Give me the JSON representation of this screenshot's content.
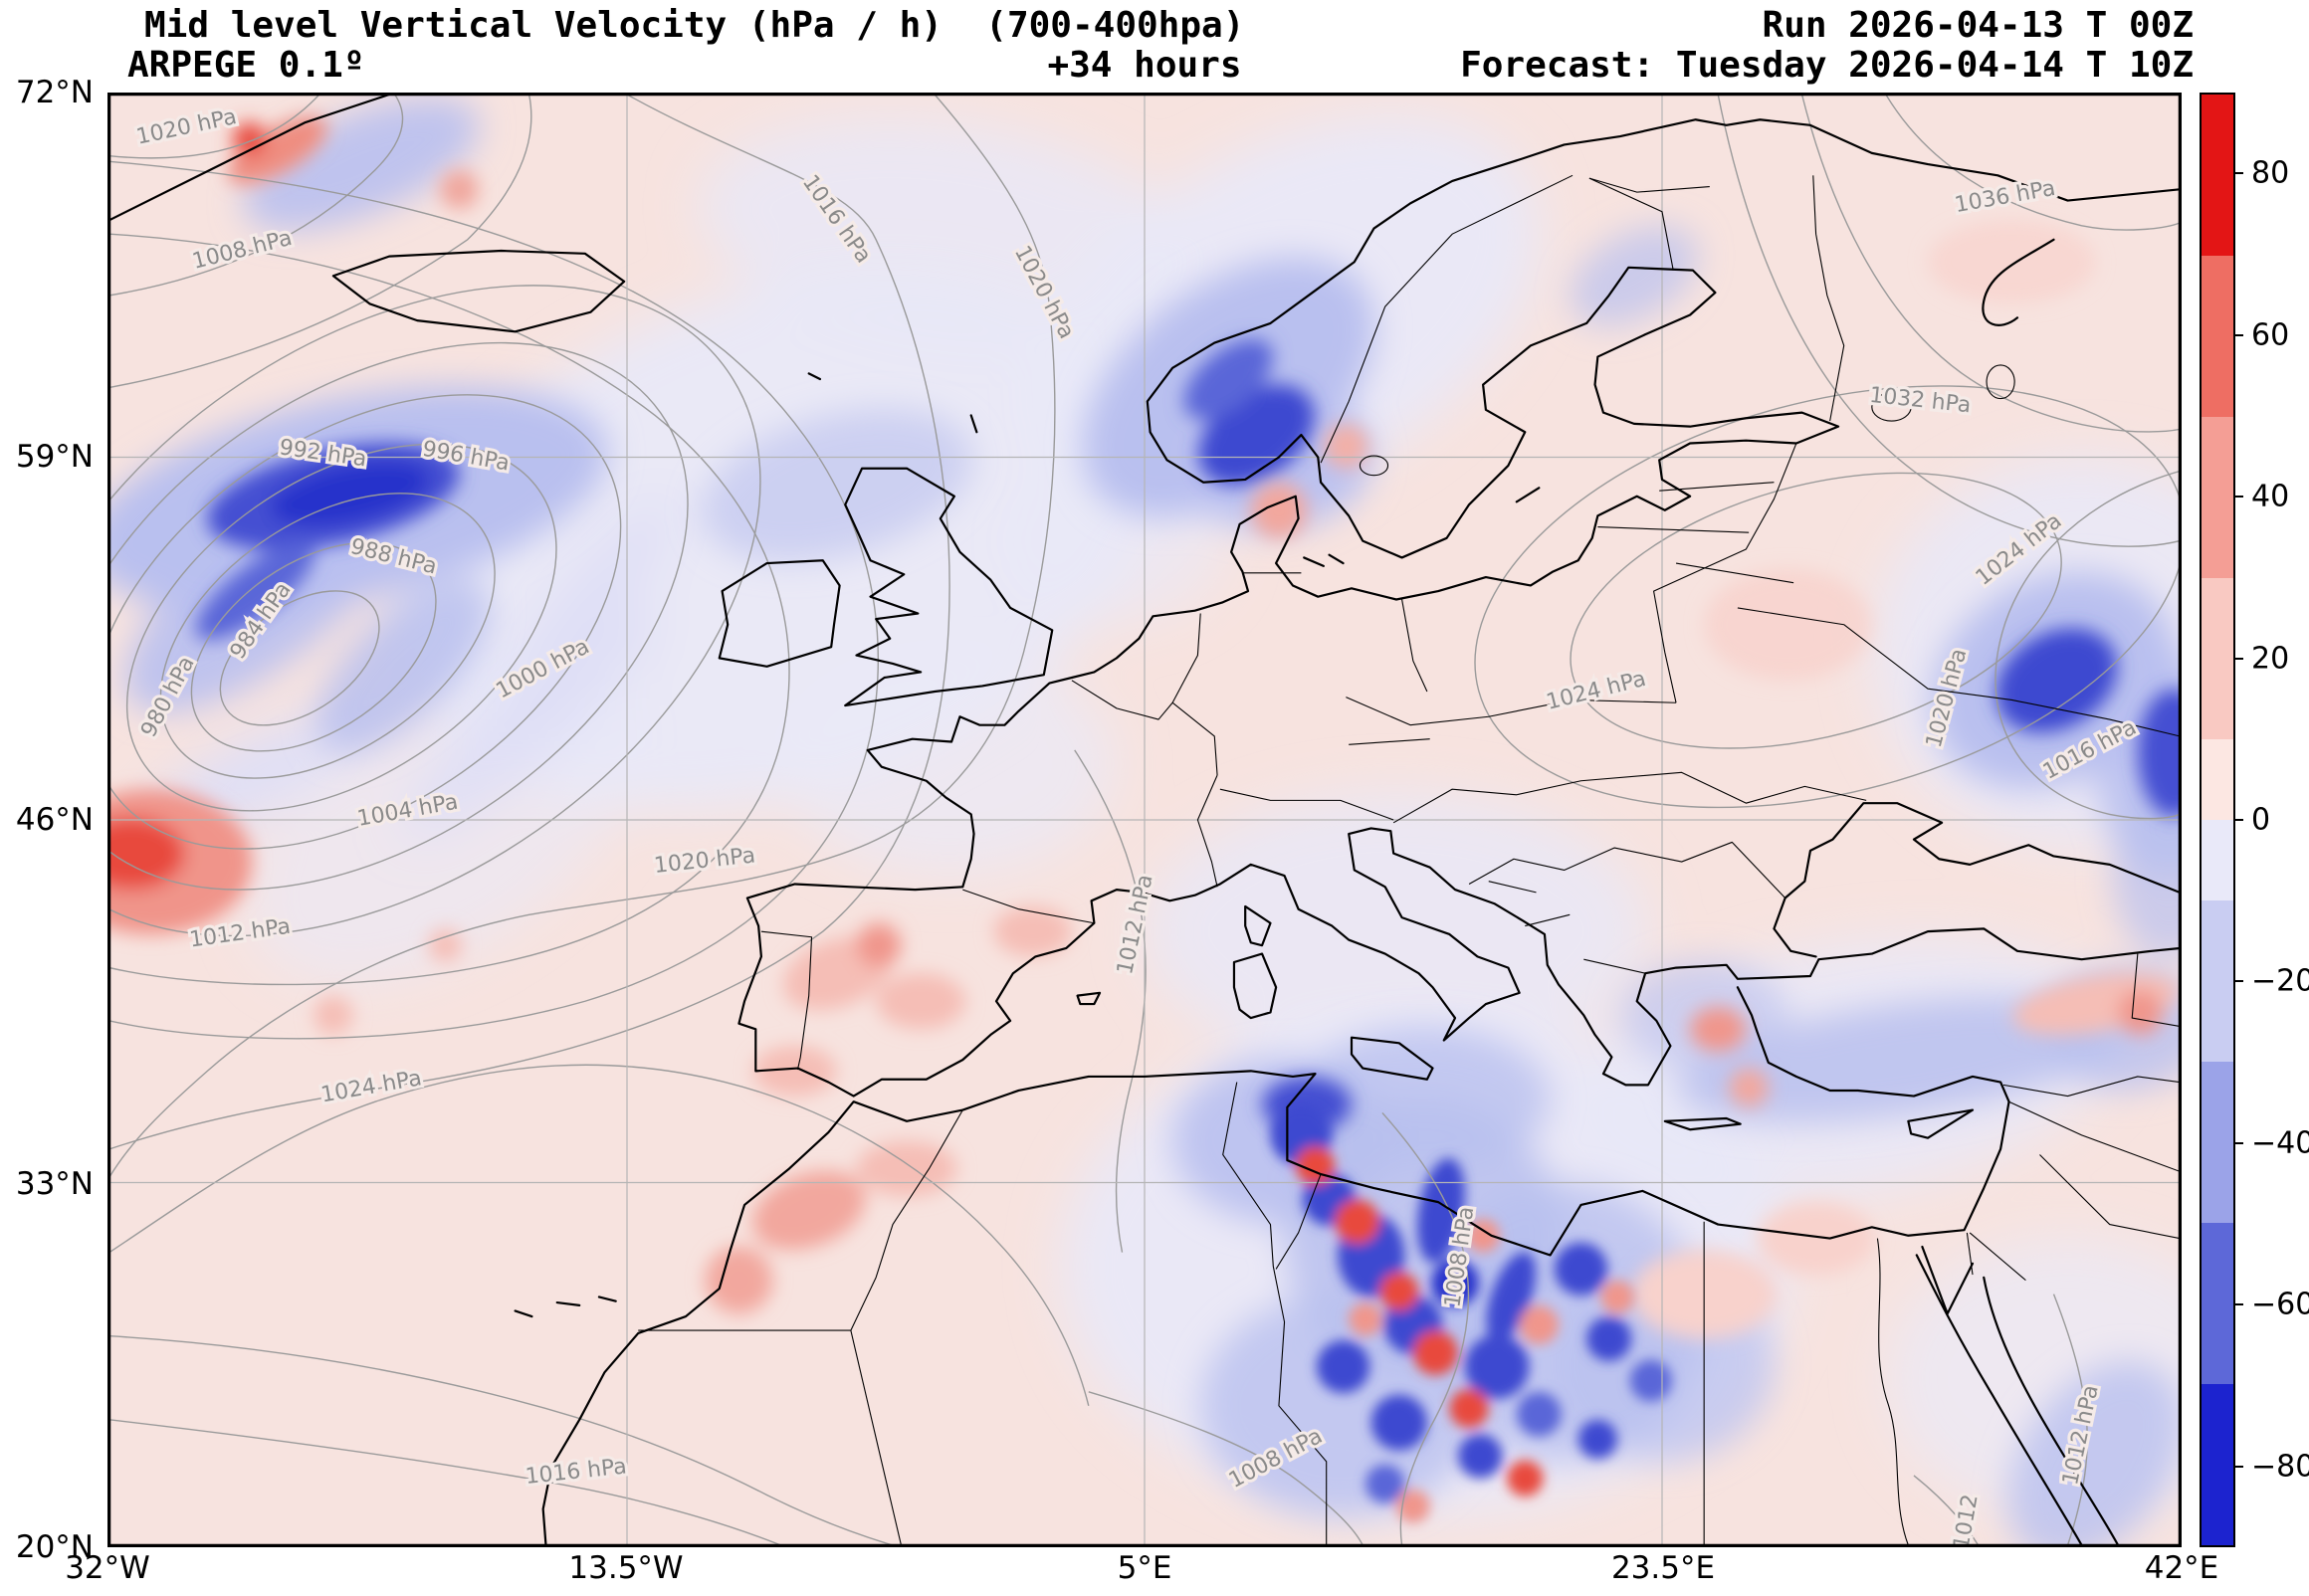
{
  "header": {
    "title": "Mid level Vertical Velocity (hPa / h)  (700-400hpa)",
    "model": "ARPEGE 0.1º",
    "lead_time": "+34 hours",
    "run": "Run 2026-04-13 T 00Z",
    "forecast": "Forecast: Tuesday 2026-04-14 T 10Z"
  },
  "map": {
    "extent": {
      "lon_min": -32,
      "lon_max": 42,
      "lat_min": 20,
      "lat_max": 72
    },
    "x_ticks": [
      {
        "label": "32°W",
        "lon": -32
      },
      {
        "label": "13.5°W",
        "lon": -13.5
      },
      {
        "label": "5°E",
        "lon": 5
      },
      {
        "label": "23.5°E",
        "lon": 23.5
      },
      {
        "label": "42°E",
        "lon": 42
      }
    ],
    "y_ticks": [
      {
        "label": "72°N",
        "lat": 72
      },
      {
        "label": "59°N",
        "lat": 59
      },
      {
        "label": "46°N",
        "lat": 46
      },
      {
        "label": "33°N",
        "lat": 33
      },
      {
        "label": "20°N",
        "lat": 20
      }
    ]
  },
  "colorbar": {
    "boundaries": [
      90,
      70,
      50,
      30,
      10,
      0,
      -10,
      -30,
      -50,
      -70,
      -90
    ],
    "colors": [
      "#e31515",
      "#ee6e63",
      "#f49e95",
      "#f9c9c2",
      "#fce7e2",
      "#e9e9f9",
      "#c9cdf2",
      "#9ba3e8",
      "#5d68d8",
      "#1c23cf"
    ],
    "ticks": [
      {
        "label": "80",
        "value": 80
      },
      {
        "label": "60",
        "value": 60
      },
      {
        "label": "40",
        "value": 40
      },
      {
        "label": "20",
        "value": 20
      },
      {
        "label": "0",
        "value": 0
      },
      {
        "label": "−20",
        "value": -20
      },
      {
        "label": "−40",
        "value": -40
      },
      {
        "label": "−60",
        "value": -60
      },
      {
        "label": "−80",
        "value": -80
      }
    ]
  },
  "isobar_labels": [
    {
      "text": "1020 hPa",
      "lon": -29.2,
      "lat": 70.6,
      "rot": -12
    },
    {
      "text": "1008 hPa",
      "lon": -27.2,
      "lat": 66.2,
      "rot": -14
    },
    {
      "text": "1016 hPa",
      "lon": -6.2,
      "lat": 67.4,
      "rot": 55
    },
    {
      "text": "1020 hPa",
      "lon": 1.2,
      "lat": 64.8,
      "rot": 62
    },
    {
      "text": "1036 hPa",
      "lon": 35.8,
      "lat": 68.1,
      "rot": -10
    },
    {
      "text": "1032 hPa",
      "lon": 32.7,
      "lat": 60.8,
      "rot": 6
    },
    {
      "text": "992 hPa",
      "lon": -24.4,
      "lat": 58.9,
      "rot": 8
    },
    {
      "text": "996 hPa",
      "lon": -19.3,
      "lat": 58.8,
      "rot": 10
    },
    {
      "text": "988 hPa",
      "lon": -21.9,
      "lat": 55.2,
      "rot": 14
    },
    {
      "text": "984 hPa",
      "lon": -26.4,
      "lat": 53.0,
      "rot": -55
    },
    {
      "text": "980 hPa",
      "lon": -29.7,
      "lat": 50.3,
      "rot": -62
    },
    {
      "text": "1000 hPa",
      "lon": -16.4,
      "lat": 51.2,
      "rot": -28
    },
    {
      "text": "1004 hPa",
      "lon": -21.3,
      "lat": 46.1,
      "rot": -10
    },
    {
      "text": "1012 hPa",
      "lon": -27.3,
      "lat": 41.7,
      "rot": -8
    },
    {
      "text": "1024 hPa",
      "lon": -22.6,
      "lat": 36.2,
      "rot": -10
    },
    {
      "text": "1020 hPa",
      "lon": -10.7,
      "lat": 44.3,
      "rot": -6
    },
    {
      "text": "1012 hPa",
      "lon": 4.9,
      "lat": 42.2,
      "rot": -78
    },
    {
      "text": "1024 hPa",
      "lon": 21.2,
      "lat": 50.4,
      "rot": -14
    },
    {
      "text": "1020 hPa",
      "lon": 33.9,
      "lat": 50.3,
      "rot": -75
    },
    {
      "text": "1024 hPa",
      "lon": 36.4,
      "lat": 55.5,
      "rot": -38
    },
    {
      "text": "1016 hPa",
      "lon": 38.9,
      "lat": 48.3,
      "rot": -28
    },
    {
      "text": "1008 hPa",
      "lon": 16.5,
      "lat": 30.3,
      "rot": -82
    },
    {
      "text": "1016 hPa",
      "lon": -15.3,
      "lat": 22.4,
      "rot": -6
    },
    {
      "text": "1008 hPa",
      "lon": 9.8,
      "lat": 22.9,
      "rot": -28
    },
    {
      "text": "1012 hPa",
      "lon": 38.7,
      "lat": 23.9,
      "rot": -78
    },
    {
      "text": "1012",
      "lon": 34.6,
      "lat": 20.8,
      "rot": -80
    }
  ],
  "chart_data": {
    "type": "heatmap",
    "title": "Mid level Vertical Velocity (hPa / h) (700-400hpa)",
    "field": "mid-level vertical velocity with mean-sea-level pressure contours",
    "units": "hPa / h",
    "model": "ARPEGE 0.1º",
    "run": "2026-04-13 00Z",
    "lead_hours": 34,
    "valid_time": "Tuesday 2026-04-14 10Z",
    "x_axis": {
      "label": "longitude",
      "tick_labels": [
        "32°W",
        "13.5°W",
        "5°E",
        "23.5°E",
        "42°E"
      ],
      "tick_values_deg_east": [
        -32,
        -13.5,
        5,
        23.5,
        42
      ],
      "range": [
        -32,
        42
      ]
    },
    "y_axis": {
      "label": "latitude",
      "tick_labels": [
        "72°N",
        "59°N",
        "46°N",
        "33°N",
        "20°N"
      ],
      "tick_values_deg_north": [
        72,
        59,
        46,
        33,
        20
      ],
      "range": [
        20,
        72
      ]
    },
    "grid": true,
    "legend_position": "right colorbar",
    "colorbar": {
      "tick_labels": [
        "80",
        "60",
        "40",
        "20",
        "0",
        "−20",
        "−40",
        "−60",
        "−80"
      ],
      "tick_values": [
        80,
        60,
        40,
        20,
        0,
        -20,
        -40,
        -60,
        -80
      ],
      "range": [
        -90,
        90
      ],
      "band_boundaries_top_to_bottom": [
        90,
        70,
        50,
        30,
        10,
        0,
        -10,
        -30,
        -50,
        -70,
        -90
      ],
      "band_colors_top_to_bottom": [
        "#e31515",
        "#ee6e63",
        "#f49e95",
        "#f9c9c2",
        "#fce7e2",
        "#e9e9f9",
        "#c9cdf2",
        "#9ba3e8",
        "#5d68d8",
        "#1c23cf"
      ]
    },
    "isobar_values_hpa": [
      980,
      984,
      988,
      992,
      996,
      1000,
      1004,
      1008,
      1012,
      1016,
      1020,
      1024,
      1032,
      1036
    ],
    "pressure_centers": [
      {
        "type": "low",
        "approx_lon": -23,
        "approx_lat": 53,
        "central_isobar_hpa": 980
      },
      {
        "type": "high",
        "approx_lon": 36,
        "approx_lat": 68,
        "isobar_hpa": 1036
      },
      {
        "type": "high",
        "approx_lon": 29,
        "approx_lat": 53,
        "isobar_hpa": 1024
      }
    ],
    "notable_velocity_features": [
      {
        "sign": "negative (blue)",
        "region": "Atlantic south of Iceland, elongated storm band",
        "approx_lon": -24,
        "approx_lat": 57.5,
        "approx_value_hpa_h": -70
      },
      {
        "sign": "negative (blue)",
        "region": "South Norway / Skagerrak coast",
        "approx_lon": 9,
        "approx_lat": 60,
        "approx_value_hpa_h": -50
      },
      {
        "sign": "negative (blue)",
        "region": "Western Russia / Eastern Ukraine",
        "approx_lon": 37.5,
        "approx_lat": 51,
        "approx_value_hpa_h": -50
      },
      {
        "sign": "mixed dappled (blue/red)",
        "region": "Sahara: Algeria / Tunisia / Libya convective field",
        "approx_lon": 14,
        "approx_lat": 28,
        "approx_value_hpa_h": "-70 to +60"
      },
      {
        "sign": "negative (blue)",
        "region": "Southern Turkey band",
        "approx_lon": 32,
        "approx_lat": 37.5,
        "approx_value_hpa_h": -30
      },
      {
        "sign": "positive (red)",
        "region": "West map edge mid-Atlantic",
        "approx_lon": -30.5,
        "approx_lat": 44.5,
        "approx_value_hpa_h": 50
      },
      {
        "sign": "weak positive (pale pink)",
        "region": "most of continental Europe background",
        "approx_value_hpa_h": 5
      },
      {
        "sign": "weak negative (pale blue)",
        "region": "NE Atlantic / British Isles background",
        "approx_value_hpa_h": -5
      }
    ]
  }
}
